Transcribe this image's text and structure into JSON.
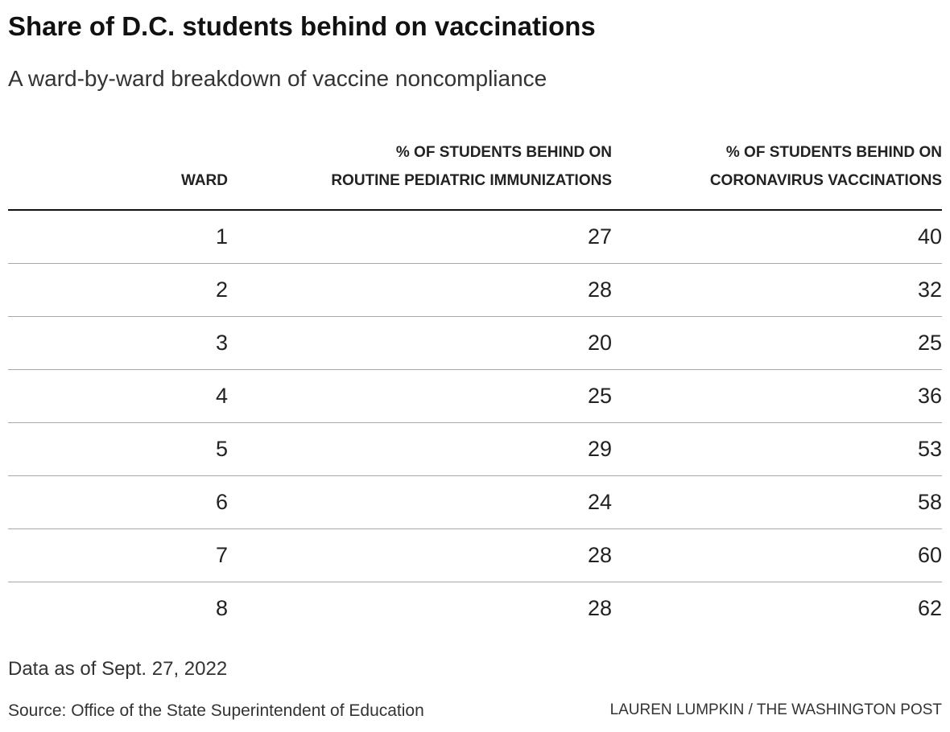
{
  "header": {
    "title": "Share of D.C. students behind on vaccinations",
    "subtitle": "A ward-by-ward breakdown of vaccine noncompliance"
  },
  "table": {
    "columns": [
      [
        "WARD"
      ],
      [
        "% OF STUDENTS BEHIND ON",
        "ROUTINE PEDIATRIC IMMUNIZATIONS"
      ],
      [
        "% OF STUDENTS BEHIND ON",
        "CORONAVIRUS VACCINATIONS"
      ]
    ],
    "rows": [
      [
        1,
        27,
        40
      ],
      [
        2,
        28,
        32
      ],
      [
        3,
        20,
        25
      ],
      [
        4,
        25,
        36
      ],
      [
        5,
        29,
        53
      ],
      [
        6,
        24,
        58
      ],
      [
        7,
        28,
        60
      ],
      [
        8,
        28,
        62
      ]
    ]
  },
  "footer": {
    "note": "Data as of Sept. 27, 2022",
    "source": "Source: Office of the State Superintendent of Education",
    "credit": "LAUREN LUMPKIN / THE WASHINGTON POST"
  }
}
